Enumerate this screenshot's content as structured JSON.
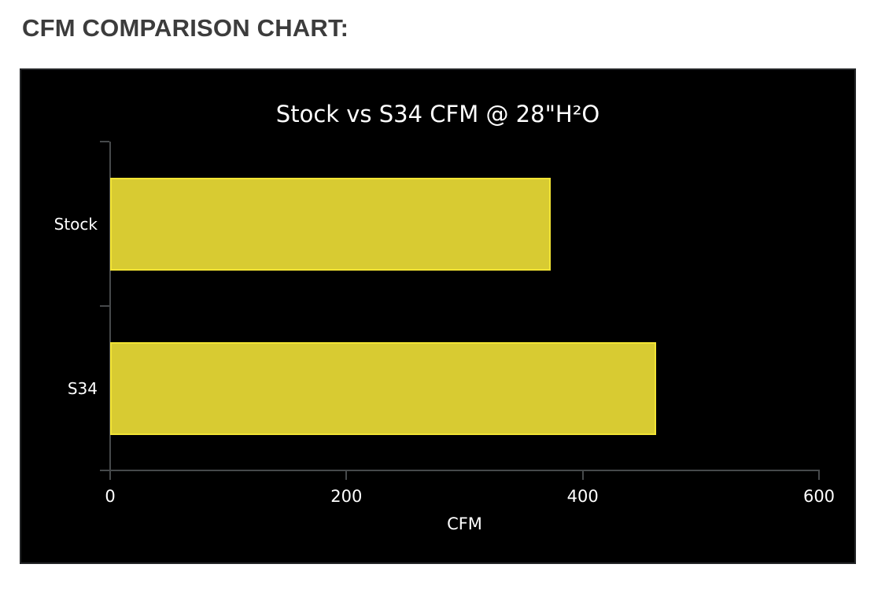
{
  "page": {
    "heading": "CFM COMPARISON CHART:"
  },
  "chart_data": {
    "type": "bar",
    "orientation": "horizontal",
    "title": "Stock vs S34 CFM @ 28\"H²O",
    "categories": [
      "Stock",
      "S34"
    ],
    "values": [
      373,
      462
    ],
    "xlabel": "CFM",
    "ylabel": "",
    "xlim": [
      0,
      600
    ],
    "xticks": [
      0,
      200,
      400,
      600
    ],
    "grid": false,
    "legend": false,
    "colors": {
      "panel_background": "#000000",
      "bar_fill": "#d8cb32",
      "bar_border": "#f2e434",
      "axis_line": "#46494b",
      "chart_text": "#ffffff",
      "heading_text": "#3c3c3c"
    }
  }
}
